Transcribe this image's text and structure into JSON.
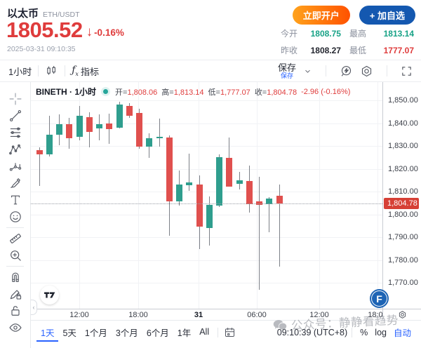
{
  "header": {
    "symbol_name": "以太币",
    "symbol_pair": "ETH/USDT",
    "price": "1805.52",
    "change_pct": "-0.16%",
    "timestamp": "2025-03-31 09:10:35",
    "open_account_button": "立即开户",
    "add_watchlist_button": "+ 加自选",
    "stats": [
      {
        "label": "今开",
        "value": "1808.75",
        "tone": "up"
      },
      {
        "label": "最高",
        "value": "1813.14",
        "tone": "up"
      },
      {
        "label": "昨收",
        "value": "1808.27",
        "tone": "neutral"
      },
      {
        "label": "最低",
        "value": "1777.07",
        "tone": "down"
      }
    ]
  },
  "toolbar": {
    "interval_label": "1小时",
    "fx_label": "ƒ",
    "fx_sub": "x",
    "indicators_label": "指标",
    "save_label": "保存",
    "save_sublabel": "保存"
  },
  "legend": {
    "series_title": "BINETH · 1小时",
    "open_label": "开=",
    "open_value": "1,808.06",
    "high_label": "高=",
    "high_value": "1,813.14",
    "low_label": "低=",
    "low_value": "1,777.07",
    "close_label": "收=",
    "close_value": "1,804.78",
    "change_text": "-2.96 (-0.16%)"
  },
  "chart_data": {
    "type": "candlestick",
    "symbol": "BINETH",
    "interval": "1小时",
    "y_ticks": [
      1850,
      1840,
      1830,
      1820,
      1810,
      1800,
      1790,
      1780,
      1770
    ],
    "last_price": 1804.78,
    "last_price_label": "1,804.78",
    "x_labels": [
      {
        "label": "12:00",
        "x": 113
      },
      {
        "label": "18:00",
        "x": 197
      },
      {
        "label": "31",
        "x": 283,
        "emph": true
      },
      {
        "label": "06:00",
        "x": 366
      },
      {
        "label": "12:00",
        "x": 455
      },
      {
        "label": "18:00",
        "x": 538
      }
    ],
    "candles": [
      {
        "o": 1828.2,
        "h": 1829.4,
        "l": 1812.5,
        "c": 1826.3
      },
      {
        "o": 1826.3,
        "h": 1843.2,
        "l": 1825.4,
        "c": 1834.9
      },
      {
        "o": 1834.9,
        "h": 1843.8,
        "l": 1830.3,
        "c": 1839.5
      },
      {
        "o": 1839.5,
        "h": 1842.3,
        "l": 1828.8,
        "c": 1833.4
      },
      {
        "o": 1834.0,
        "h": 1847.5,
        "l": 1832.5,
        "c": 1843.2
      },
      {
        "o": 1842.6,
        "h": 1844.8,
        "l": 1829.4,
        "c": 1836.2
      },
      {
        "o": 1837.7,
        "h": 1843.8,
        "l": 1832.5,
        "c": 1839.5
      },
      {
        "o": 1839.8,
        "h": 1844.2,
        "l": 1830.9,
        "c": 1837.4
      },
      {
        "o": 1838.0,
        "h": 1849.4,
        "l": 1837.7,
        "c": 1848.2
      },
      {
        "o": 1847.5,
        "h": 1848.8,
        "l": 1842.3,
        "c": 1843.2
      },
      {
        "o": 1844.5,
        "h": 1846.3,
        "l": 1828.8,
        "c": 1829.7
      },
      {
        "o": 1829.7,
        "h": 1835.5,
        "l": 1824.8,
        "c": 1833.4
      },
      {
        "o": 1833.4,
        "h": 1842.0,
        "l": 1829.7,
        "c": 1834.0
      },
      {
        "o": 1833.7,
        "h": 1834.6,
        "l": 1790.6,
        "c": 1805.7
      },
      {
        "o": 1805.7,
        "h": 1819.2,
        "l": 1803.8,
        "c": 1813.1
      },
      {
        "o": 1812.8,
        "h": 1826.6,
        "l": 1810.3,
        "c": 1814.0
      },
      {
        "o": 1813.1,
        "h": 1817.1,
        "l": 1784.8,
        "c": 1794.6
      },
      {
        "o": 1794.0,
        "h": 1807.8,
        "l": 1786.3,
        "c": 1804.2
      },
      {
        "o": 1803.8,
        "h": 1826.3,
        "l": 1803.2,
        "c": 1825.1
      },
      {
        "o": 1824.8,
        "h": 1833.7,
        "l": 1812.2,
        "c": 1812.2
      },
      {
        "o": 1813.4,
        "h": 1818.6,
        "l": 1810.9,
        "c": 1814.9
      },
      {
        "o": 1814.6,
        "h": 1821.4,
        "l": 1800.8,
        "c": 1804.5
      },
      {
        "o": 1805.7,
        "h": 1816.5,
        "l": 1766.9,
        "c": 1804.2
      },
      {
        "o": 1804.5,
        "h": 1807.5,
        "l": 1792.2,
        "c": 1806.9
      },
      {
        "o": 1808.06,
        "h": 1813.14,
        "l": 1777.07,
        "c": 1804.78
      }
    ]
  },
  "sidebar": {
    "tools": [
      {
        "name": "crosshair"
      },
      {
        "name": "trend-line"
      },
      {
        "name": "fib-lines"
      },
      {
        "name": "xabcd-pattern"
      },
      {
        "name": "forecast"
      },
      {
        "name": "brush"
      },
      {
        "name": "text-tool"
      },
      {
        "name": "emoji"
      },
      {
        "name": "divider"
      },
      {
        "name": "ruler"
      },
      {
        "name": "zoom-in"
      },
      {
        "name": "divider"
      },
      {
        "name": "magnet"
      },
      {
        "name": "draw-lock"
      },
      {
        "name": "lock"
      },
      {
        "name": "eye"
      }
    ]
  },
  "bottom": {
    "ranges": [
      {
        "label": "1天",
        "active": true
      },
      {
        "label": "5天"
      },
      {
        "label": "1个月"
      },
      {
        "label": "3个月"
      },
      {
        "label": "6个月"
      },
      {
        "label": "1年"
      },
      {
        "label": "All"
      }
    ],
    "clock": "09:10:39 (UTC+8)",
    "percent_label": "%",
    "log_label": "log",
    "auto_label": "自动"
  },
  "watermark": {
    "text": "公众号：静静看趋势"
  },
  "logos": {
    "f_letter": "F"
  },
  "colors": {
    "price_red": "#df3c3c",
    "stat_green": "#17a286",
    "accent_blue": "#2962ff",
    "candle_up": "#2f9e8e",
    "candle_down": "#e0504e",
    "badge_red": "#d64036",
    "button_blue": "#1458b0",
    "button_orange_start": "#ffa21c",
    "button_orange_end": "#ff5200"
  }
}
